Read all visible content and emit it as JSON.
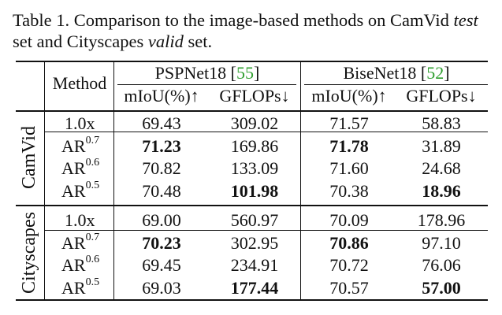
{
  "caption": {
    "prefix": "Table 1. Comparison to the image-based methods on CamVid ",
    "test": "test",
    "middle": " set and Cityscapes ",
    "valid": "valid",
    "suffix": " set."
  },
  "table": {
    "method_header": "Method",
    "groups": [
      {
        "name": "PSPNet18",
        "ref": "55"
      },
      {
        "name": "BiseNet18",
        "ref": "52"
      }
    ],
    "col_headers": [
      "mIoU(%)↑",
      "GFLOPs↓",
      "mIoU(%)↑",
      "GFLOPs↓"
    ],
    "blocks": [
      {
        "dataset": "CamVid",
        "rows": [
          {
            "base": "1.0x",
            "sup": "",
            "vals": [
              "69.43",
              "309.02",
              "71.57",
              "58.83"
            ],
            "bold": [
              false,
              false,
              false,
              false
            ]
          },
          {
            "base": "AR",
            "sup": "0.7",
            "vals": [
              "71.23",
              "169.86",
              "71.78",
              "31.89"
            ],
            "bold": [
              true,
              false,
              true,
              false
            ]
          },
          {
            "base": "AR",
            "sup": "0.6",
            "vals": [
              "70.82",
              "133.09",
              "71.60",
              "24.68"
            ],
            "bold": [
              false,
              false,
              false,
              false
            ]
          },
          {
            "base": "AR",
            "sup": "0.5",
            "vals": [
              "70.48",
              "101.98",
              "70.38",
              "18.96"
            ],
            "bold": [
              false,
              true,
              false,
              true
            ]
          }
        ]
      },
      {
        "dataset": "Cityscapes",
        "rows": [
          {
            "base": "1.0x",
            "sup": "",
            "vals": [
              "69.00",
              "560.97",
              "70.09",
              "178.96"
            ],
            "bold": [
              false,
              false,
              false,
              false
            ]
          },
          {
            "base": "AR",
            "sup": "0.7",
            "vals": [
              "70.23",
              "302.95",
              "70.86",
              "97.10"
            ],
            "bold": [
              true,
              false,
              true,
              false
            ]
          },
          {
            "base": "AR",
            "sup": "0.6",
            "vals": [
              "69.45",
              "234.91",
              "70.72",
              "76.06"
            ],
            "bold": [
              false,
              false,
              false,
              false
            ]
          },
          {
            "base": "AR",
            "sup": "0.5",
            "vals": [
              "69.03",
              "177.44",
              "70.57",
              "57.00"
            ],
            "bold": [
              false,
              true,
              false,
              true
            ]
          }
        ]
      }
    ],
    "colors": {
      "reference": "#2e9e2e"
    }
  }
}
